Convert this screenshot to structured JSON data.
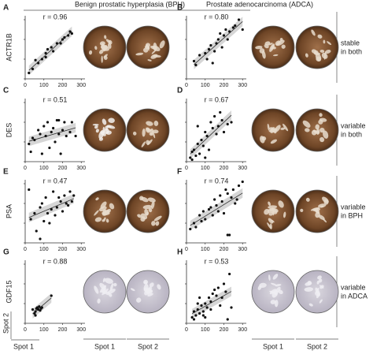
{
  "headers": [
    "Benign prostatic hyperplasia (BPH)",
    "Prostate adenocarcinoma (ADCA)"
  ],
  "rows": [
    {
      "gene": "ACTR1B",
      "note": [
        "stable",
        "in both"
      ]
    },
    {
      "gene": "DES",
      "note": [
        "variable",
        "in both"
      ]
    },
    {
      "gene": "PSA",
      "note": [
        "variable",
        "in BPH"
      ]
    },
    {
      "gene": "GDF15",
      "note": [
        "variable",
        "in ADCA"
      ]
    }
  ],
  "axis_labels": {
    "x": "Spot 1",
    "y": "Spot 2"
  },
  "spot_labels": [
    "Spot 1",
    "Spot 2",
    "Spot 1",
    "Spot 2"
  ],
  "chart_data": [
    {
      "type": "scatter",
      "panel": "A",
      "annotation": "r = 0.96",
      "color": "#111",
      "xlim": [
        0,
        320
      ],
      "ylim": [
        0,
        320
      ],
      "xticks": [
        0,
        100,
        200,
        300
      ],
      "yticks": [
        0,
        100,
        200,
        300
      ],
      "x": [
        20,
        40,
        55,
        70,
        90,
        110,
        120,
        140,
        150,
        170,
        190,
        200,
        210,
        230,
        240,
        250,
        110
      ],
      "values": [
        30,
        50,
        95,
        80,
        100,
        110,
        150,
        160,
        140,
        180,
        180,
        200,
        210,
        220,
        240,
        230,
        130
      ]
    },
    {
      "type": "scatter",
      "panel": "B",
      "annotation": "r = 0.80",
      "color": "#111",
      "xlim": [
        0,
        320
      ],
      "ylim": [
        0,
        320
      ],
      "xticks": [
        0,
        100,
        200,
        300
      ],
      "yticks": [
        0,
        100,
        200,
        300
      ],
      "x": [
        40,
        50,
        70,
        100,
        110,
        120,
        130,
        150,
        160,
        170,
        180,
        190,
        200,
        210,
        220,
        230,
        250,
        260,
        280,
        300,
        140
      ],
      "values": [
        90,
        70,
        120,
        130,
        100,
        150,
        170,
        140,
        180,
        200,
        230,
        160,
        220,
        250,
        200,
        240,
        260,
        270,
        300,
        250,
        80
      ]
    },
    {
      "type": "scatter",
      "panel": "C",
      "annotation": "r = 0.51",
      "color": "#111",
      "xlim": [
        0,
        320
      ],
      "ylim": [
        0,
        320
      ],
      "xticks": [
        0,
        100,
        200,
        300
      ],
      "yticks": [
        0,
        100,
        200,
        300
      ],
      "x": [
        20,
        30,
        40,
        50,
        70,
        80,
        90,
        100,
        110,
        120,
        130,
        140,
        150,
        160,
        170,
        180,
        190,
        200,
        210,
        220,
        240,
        250,
        270,
        180
      ],
      "values": [
        90,
        50,
        120,
        110,
        160,
        140,
        40,
        180,
        130,
        200,
        70,
        150,
        170,
        100,
        210,
        140,
        40,
        160,
        200,
        130,
        150,
        200,
        130,
        210
      ]
    },
    {
      "type": "scatter",
      "panel": "D",
      "annotation": "r = 0.67",
      "color": "#111",
      "xlim": [
        0,
        320
      ],
      "ylim": [
        0,
        320
      ],
      "xticks": [
        0,
        100,
        200,
        300
      ],
      "yticks": [
        0,
        100,
        200,
        300
      ],
      "x": [
        20,
        30,
        40,
        50,
        60,
        70,
        80,
        90,
        100,
        110,
        120,
        130,
        140,
        150,
        160,
        170,
        180,
        190,
        200,
        220,
        240,
        60,
        100,
        30
      ],
      "values": [
        20,
        50,
        60,
        30,
        90,
        40,
        110,
        80,
        150,
        130,
        60,
        200,
        170,
        230,
        140,
        180,
        250,
        210,
        150,
        190,
        200,
        180,
        20,
        10
      ]
    },
    {
      "type": "scatter",
      "panel": "E",
      "annotation": "r = 0.47",
      "color": "#111",
      "xlim": [
        0,
        320
      ],
      "ylim": [
        0,
        320
      ],
      "xticks": [
        0,
        100,
        200,
        300
      ],
      "yticks": [
        0,
        100,
        200,
        300
      ],
      "x": [
        20,
        30,
        50,
        60,
        80,
        90,
        100,
        110,
        120,
        130,
        140,
        150,
        160,
        170,
        180,
        190,
        200,
        210,
        220,
        230,
        240,
        250,
        260,
        80
      ],
      "values": [
        270,
        120,
        150,
        60,
        180,
        200,
        110,
        230,
        150,
        100,
        170,
        260,
        140,
        180,
        230,
        210,
        160,
        240,
        200,
        190,
        260,
        210,
        240,
        20
      ]
    },
    {
      "type": "scatter",
      "panel": "F",
      "annotation": "r = 0.74",
      "color": "#111",
      "xlim": [
        0,
        320
      ],
      "ylim": [
        0,
        320
      ],
      "xticks": [
        0,
        100,
        200,
        300
      ],
      "yticks": [
        0,
        100,
        200,
        300
      ],
      "x": [
        20,
        40,
        50,
        70,
        80,
        90,
        100,
        120,
        130,
        140,
        150,
        160,
        170,
        180,
        190,
        200,
        210,
        220,
        230,
        240,
        250,
        260,
        270,
        280,
        300,
        220
      ],
      "values": [
        70,
        100,
        80,
        140,
        110,
        160,
        120,
        170,
        180,
        140,
        220,
        190,
        160,
        240,
        210,
        150,
        270,
        250,
        40,
        230,
        270,
        200,
        220,
        290,
        310,
        40
      ]
    },
    {
      "type": "scatter",
      "panel": "G",
      "annotation": "r = 0.88",
      "color": "#111",
      "xlim": [
        0,
        320
      ],
      "ylim": [
        0,
        320
      ],
      "xticks": [
        0,
        100,
        200,
        300
      ],
      "yticks": [
        0,
        100,
        200,
        300
      ],
      "x": [
        40,
        50,
        55,
        60,
        65,
        70,
        75,
        80,
        85,
        90,
        55,
        140
      ],
      "values": [
        70,
        50,
        60,
        75,
        80,
        70,
        85,
        65,
        75,
        80,
        40,
        140
      ]
    },
    {
      "type": "scatter",
      "panel": "H",
      "annotation": "r = 0.53",
      "color": "#111",
      "xlim": [
        0,
        320
      ],
      "ylim": [
        0,
        320
      ],
      "xticks": [
        0,
        100,
        200,
        300
      ],
      "yticks": [
        0,
        100,
        200,
        300
      ],
      "x": [
        30,
        40,
        50,
        60,
        70,
        80,
        90,
        100,
        110,
        120,
        130,
        140,
        150,
        160,
        170,
        180,
        190,
        200,
        210,
        220,
        230,
        240,
        60,
        70,
        90,
        100,
        40,
        130
      ],
      "values": [
        30,
        60,
        40,
        70,
        50,
        90,
        60,
        100,
        80,
        130,
        110,
        150,
        170,
        140,
        180,
        90,
        130,
        200,
        160,
        20,
        250,
        80,
        100,
        130,
        40,
        30,
        20,
        70
      ]
    }
  ]
}
